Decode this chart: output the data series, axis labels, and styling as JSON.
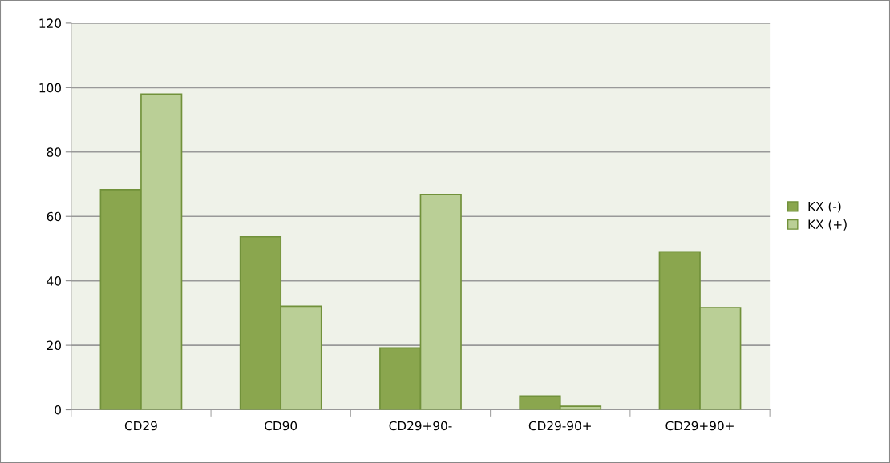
{
  "chart_data": {
    "type": "bar",
    "categories": [
      "CD29",
      "CD90",
      "CD29+90-",
      "CD29-90+",
      "CD29+90+"
    ],
    "series": [
      {
        "name": "KX (-)",
        "color": "#8aa64e",
        "values": [
          68.3,
          53.7,
          19.2,
          4.3,
          49
        ]
      },
      {
        "name": "KX (+)",
        "color": "#bacf96",
        "values": [
          98,
          32.1,
          66.8,
          1.1,
          31.7
        ]
      }
    ],
    "ylim": [
      0,
      120
    ],
    "yticks": [
      0,
      20,
      40,
      60,
      80,
      100,
      120
    ],
    "grid": "y",
    "legend": "right"
  }
}
